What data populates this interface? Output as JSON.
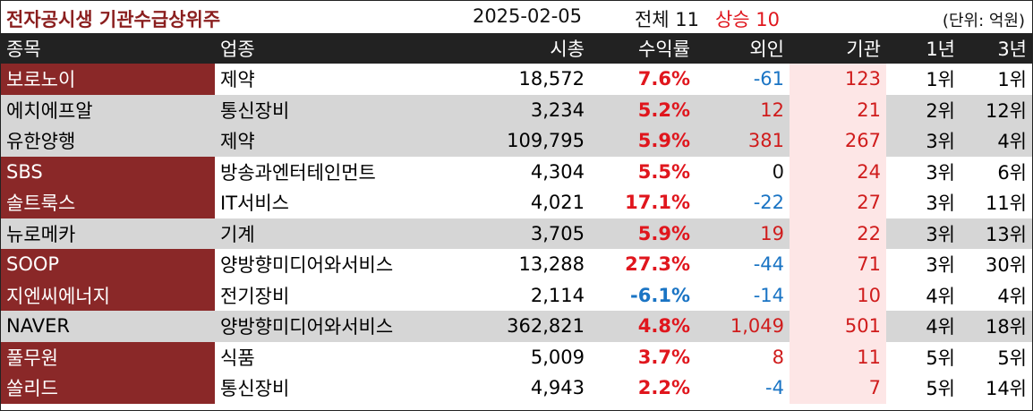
{
  "header": {
    "title": "전자공시생 기관수급상위주",
    "date": "2025-02-05",
    "total": "전체 11",
    "rise": "상승 10",
    "unit": "(단위: 억원)"
  },
  "columns": {
    "name": "종목",
    "sector": "업종",
    "mcap": "시총",
    "return": "수익률",
    "foreign": "외인",
    "inst": "기관",
    "y1": "1년",
    "y3": "3년"
  },
  "colors": {
    "highlight_name_bg": "#8a2828",
    "row_gray": "#d6d6d6",
    "inst_bg": "#fde6e6",
    "positive": "#e0161d",
    "negative": "#1a74c4"
  },
  "rows": [
    {
      "name": "보로노이",
      "sector": "제약",
      "mcap": "18,572",
      "ret": "7.6%",
      "foreign": "-61",
      "inst": "123",
      "y1": "1위",
      "y3": "1위",
      "highlight": true,
      "bg": "white"
    },
    {
      "name": "에치에프알",
      "sector": "통신장비",
      "mcap": "3,234",
      "ret": "5.2%",
      "foreign": "12",
      "inst": "21",
      "y1": "2위",
      "y3": "12위",
      "highlight": false,
      "bg": "gray"
    },
    {
      "name": "유한양행",
      "sector": "제약",
      "mcap": "109,795",
      "ret": "5.9%",
      "foreign": "381",
      "inst": "267",
      "y1": "3위",
      "y3": "4위",
      "highlight": false,
      "bg": "gray"
    },
    {
      "name": "SBS",
      "sector": "방송과엔터테인먼트",
      "mcap": "4,304",
      "ret": "5.5%",
      "foreign": "0",
      "inst": "24",
      "y1": "3위",
      "y3": "6위",
      "highlight": true,
      "bg": "white"
    },
    {
      "name": "솔트룩스",
      "sector": "IT서비스",
      "mcap": "4,021",
      "ret": "17.1%",
      "foreign": "-22",
      "inst": "27",
      "y1": "3위",
      "y3": "11위",
      "highlight": true,
      "bg": "white"
    },
    {
      "name": "뉴로메카",
      "sector": "기계",
      "mcap": "3,705",
      "ret": "5.9%",
      "foreign": "19",
      "inst": "22",
      "y1": "3위",
      "y3": "13위",
      "highlight": false,
      "bg": "gray"
    },
    {
      "name": "SOOP",
      "sector": "양방향미디어와서비스",
      "mcap": "13,288",
      "ret": "27.3%",
      "foreign": "-44",
      "inst": "71",
      "y1": "3위",
      "y3": "30위",
      "highlight": true,
      "bg": "white"
    },
    {
      "name": "지엔씨에너지",
      "sector": "전기장비",
      "mcap": "2,114",
      "ret": "-6.1%",
      "foreign": "-14",
      "inst": "10",
      "y1": "4위",
      "y3": "4위",
      "highlight": true,
      "bg": "white"
    },
    {
      "name": "NAVER",
      "sector": "양방향미디어와서비스",
      "mcap": "362,821",
      "ret": "4.8%",
      "foreign": "1,049",
      "inst": "501",
      "y1": "4위",
      "y3": "18위",
      "highlight": false,
      "bg": "gray"
    },
    {
      "name": "풀무원",
      "sector": "식품",
      "mcap": "5,009",
      "ret": "3.7%",
      "foreign": "8",
      "inst": "11",
      "y1": "5위",
      "y3": "5위",
      "highlight": true,
      "bg": "white"
    },
    {
      "name": "쏠리드",
      "sector": "통신장비",
      "mcap": "4,943",
      "ret": "2.2%",
      "foreign": "-4",
      "inst": "7",
      "y1": "5위",
      "y3": "14위",
      "highlight": true,
      "bg": "white"
    }
  ]
}
